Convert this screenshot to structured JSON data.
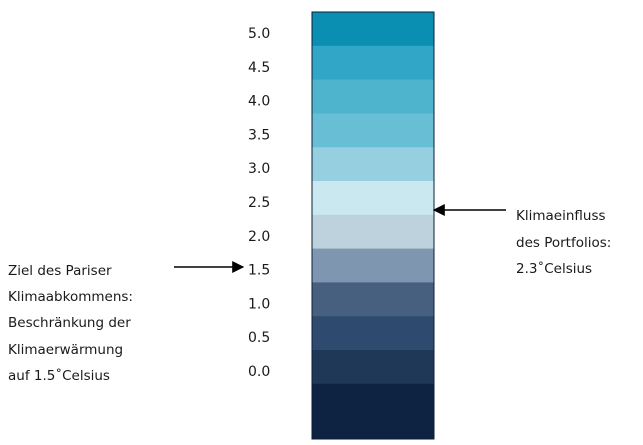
{
  "chart_data": {
    "type": "bar",
    "orientation": "vertical color scale",
    "ylim": [
      0.0,
      5.0
    ],
    "ticks": [
      "5.0",
      "4.5",
      "4.0",
      "3.5",
      "3.0",
      "2.5",
      "2.0",
      "1.5",
      "1.0",
      "0.5",
      "0.0"
    ],
    "segment_colors": [
      "#0a8fb2",
      "#31a6c6",
      "#4eb4cd",
      "#68bed5",
      "#96cfe0",
      "#c9e8ef",
      "#bdd2dd",
      "#7f96b0",
      "#486080",
      "#2f4a6f",
      "#1f3858",
      "#0e2241"
    ],
    "annotations": [
      {
        "lines": [
          "Klimaeinfluss",
          "des Portfolios:",
          "2.3˚Celsius"
        ],
        "value": 2.3,
        "arrow": "points left to scale"
      },
      {
        "lines": [
          "Ziel des Pariser",
          "Klimaabkommens:",
          "Beschränkung der",
          "Klimaerwärmung",
          "auf 1.5˚Celsius"
        ],
        "value": 1.5,
        "arrow": "points right to scale"
      }
    ]
  }
}
